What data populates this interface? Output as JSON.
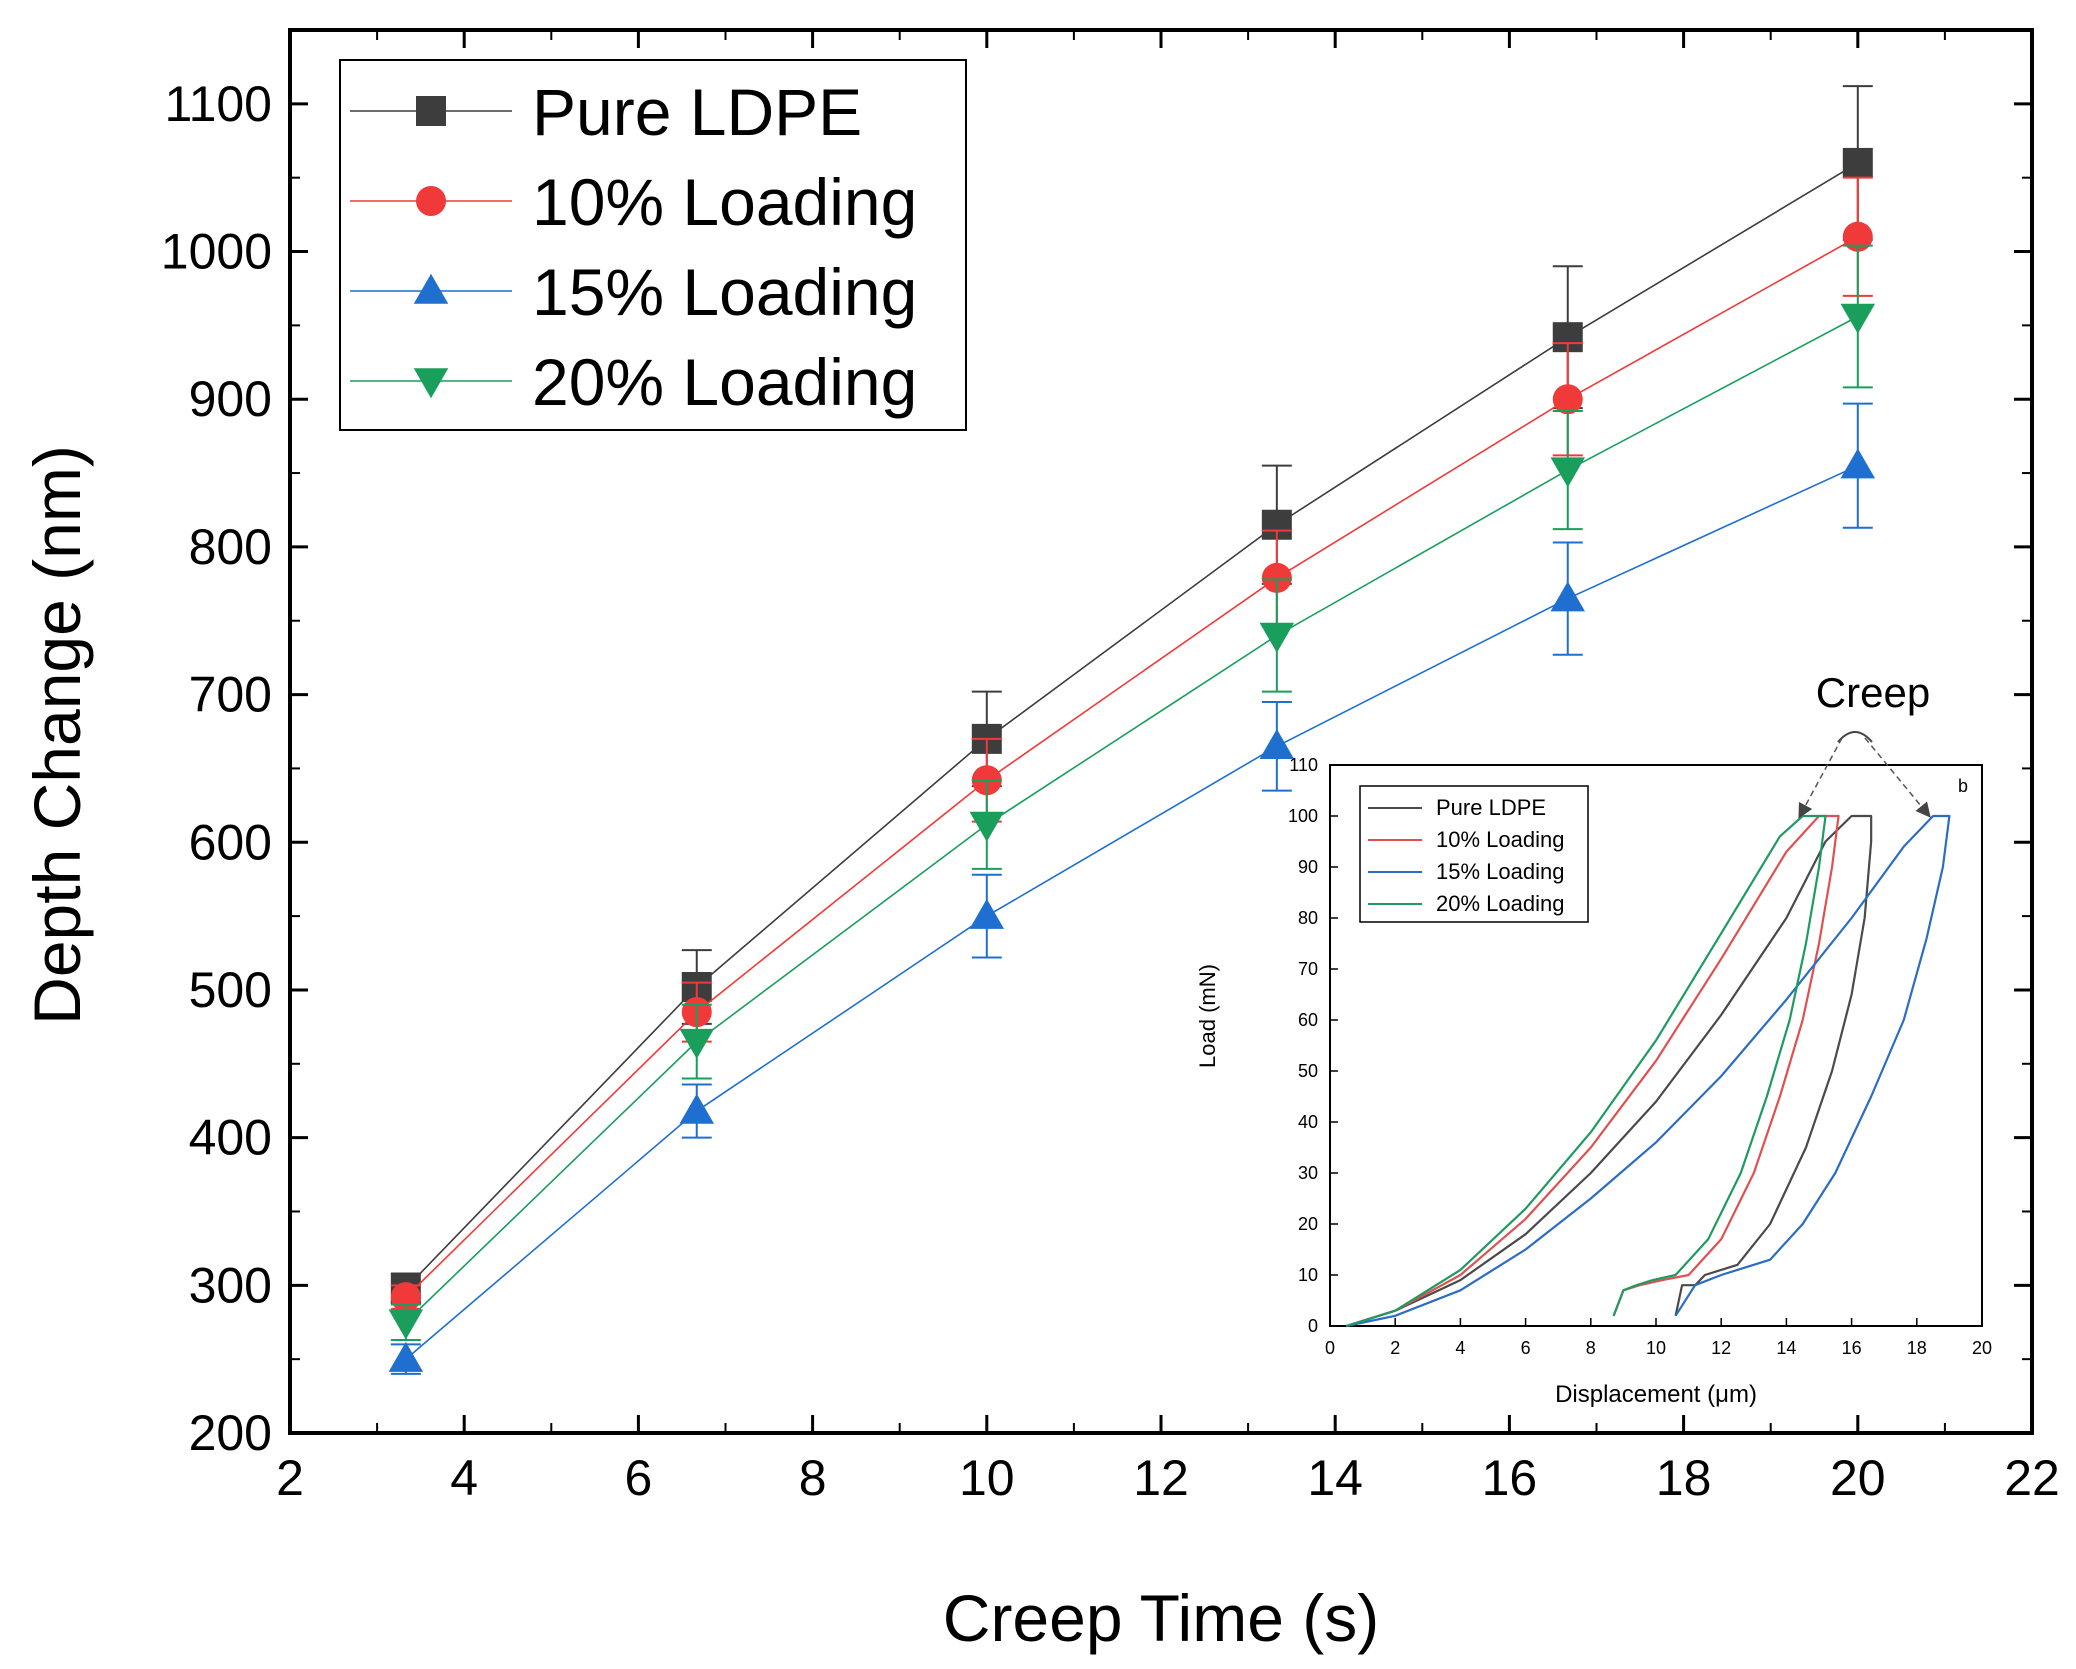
{
  "colors": {
    "pure": "#3d3d3d",
    "loading10": "#f03a3a",
    "loading15": "#1f6fd1",
    "loading20": "#1a9e5c",
    "inset_pure": "#4a4a4a",
    "inset_10": "#e05050",
    "inset_15": "#2b6cc4",
    "inset_20": "#1f9a62"
  },
  "chart_data": [
    {
      "type": "line",
      "title": "",
      "xlabel": "Creep Time (s)",
      "ylabel": "Depth Change (nm)",
      "xlim": [
        2,
        22
      ],
      "ylim": [
        200,
        1150
      ],
      "xticks": [
        2,
        4,
        6,
        8,
        10,
        12,
        14,
        16,
        18,
        20,
        22
      ],
      "xtick_labels": [
        "2",
        "4",
        "6",
        "8",
        "10",
        "12",
        "14",
        "16",
        "18",
        "20",
        "22"
      ],
      "yticks": [
        200,
        300,
        400,
        500,
        600,
        700,
        800,
        900,
        1000,
        1100
      ],
      "ytick_labels": [
        "200",
        "300",
        "400",
        "500",
        "600",
        "700",
        "800",
        "900",
        "1000",
        "1100"
      ],
      "grid": false,
      "legend_position": "top-left",
      "x": [
        3.33,
        6.67,
        10,
        13.33,
        16.67,
        20
      ],
      "series": [
        {
          "name": "Pure LDPE",
          "marker": "square",
          "color_key": "pure",
          "values": [
            298,
            502,
            670,
            815,
            942,
            1060
          ],
          "errors": [
            10,
            25,
            32,
            40,
            48,
            52
          ]
        },
        {
          "name": "10% Loading",
          "marker": "circle",
          "color_key": "loading10",
          "values": [
            292,
            485,
            642,
            779,
            900,
            1010
          ],
          "errors": [
            8,
            20,
            28,
            32,
            38,
            40
          ]
        },
        {
          "name": "15% Loading",
          "marker": "triangle-up",
          "color_key": "loading15",
          "values": [
            250,
            418,
            550,
            665,
            765,
            855
          ],
          "errors": [
            10,
            18,
            28,
            30,
            38,
            42
          ]
        },
        {
          "name": "20% Loading",
          "marker": "triangle-down",
          "color_key": "loading20",
          "values": [
            275,
            465,
            612,
            740,
            852,
            956
          ],
          "errors": [
            12,
            25,
            30,
            38,
            40,
            48
          ]
        }
      ]
    },
    {
      "type": "line",
      "title": "",
      "xlabel": "Displacement (μm)",
      "ylabel": "Load (mN)",
      "xlim": [
        0,
        20
      ],
      "ylim": [
        0,
        110
      ],
      "xticks": [
        0,
        2,
        4,
        6,
        8,
        10,
        12,
        14,
        16,
        18,
        20
      ],
      "xtick_labels": [
        "0",
        "2",
        "4",
        "6",
        "8",
        "10",
        "12",
        "14",
        "16",
        "18",
        "20"
      ],
      "yticks": [
        0,
        10,
        20,
        30,
        40,
        50,
        60,
        70,
        80,
        90,
        100,
        110
      ],
      "ytick_labels": [
        "0",
        "10",
        "20",
        "30",
        "40",
        "50",
        "60",
        "70",
        "80",
        "90",
        "100",
        "110"
      ],
      "grid": false,
      "legend_position": "top-left",
      "annotation": "Creep",
      "annotation_b": "b",
      "series": [
        {
          "name": "Pure LDPE",
          "color_key": "inset_pure",
          "peak_disp": 16.0,
          "x": [
            0.5,
            2,
            4,
            6,
            8,
            10,
            12,
            14,
            15.2,
            16.0,
            16.6,
            16.6,
            16.4,
            16.0,
            15.4,
            14.6,
            13.5,
            12.5,
            11.5,
            11.2,
            10.8,
            10.6
          ],
          "y": [
            0,
            3,
            9,
            18,
            30,
            44,
            61,
            80,
            95,
            100,
            100,
            95,
            80,
            65,
            50,
            35,
            20,
            12,
            10,
            8,
            8,
            2
          ]
        },
        {
          "name": "10% Loading",
          "color_key": "inset_10",
          "peak_disp": 15.0,
          "x": [
            0.5,
            2,
            4,
            6,
            8,
            10,
            12,
            14,
            15.0,
            15.6,
            15.4,
            15.0,
            14.5,
            13.8,
            13.0,
            12.0,
            11.0,
            10.2,
            9.5,
            9.0,
            8.7
          ],
          "y": [
            0,
            3,
            10,
            21,
            35,
            52,
            72,
            93,
            100,
            100,
            90,
            75,
            60,
            45,
            30,
            17,
            10,
            9,
            8,
            7,
            2
          ]
        },
        {
          "name": "15% Loading",
          "color_key": "inset_15",
          "peak_disp": 18.5,
          "x": [
            0.5,
            2,
            4,
            6,
            8,
            10,
            12,
            14,
            16,
            17.6,
            18.5,
            19.0,
            18.8,
            18.3,
            17.6,
            16.6,
            15.5,
            14.5,
            13.5,
            12.0,
            11.2,
            10.6
          ],
          "y": [
            0,
            2,
            7,
            15,
            25,
            36,
            49,
            64,
            80,
            94,
            100,
            100,
            90,
            76,
            60,
            45,
            30,
            20,
            13,
            10,
            8,
            2
          ]
        },
        {
          "name": "20% Loading",
          "color_key": "inset_20",
          "peak_disp": 14.5,
          "x": [
            0.5,
            2,
            4,
            6,
            8,
            10,
            12,
            13.8,
            14.5,
            15.2,
            15.0,
            14.6,
            14.1,
            13.4,
            12.6,
            11.6,
            10.6,
            9.9,
            9.4,
            9.0,
            8.7
          ],
          "y": [
            0,
            3,
            11,
            23,
            38,
            56,
            77,
            96,
            100,
            100,
            90,
            75,
            60,
            45,
            30,
            17,
            10,
            9,
            8,
            7,
            2
          ]
        }
      ]
    }
  ]
}
